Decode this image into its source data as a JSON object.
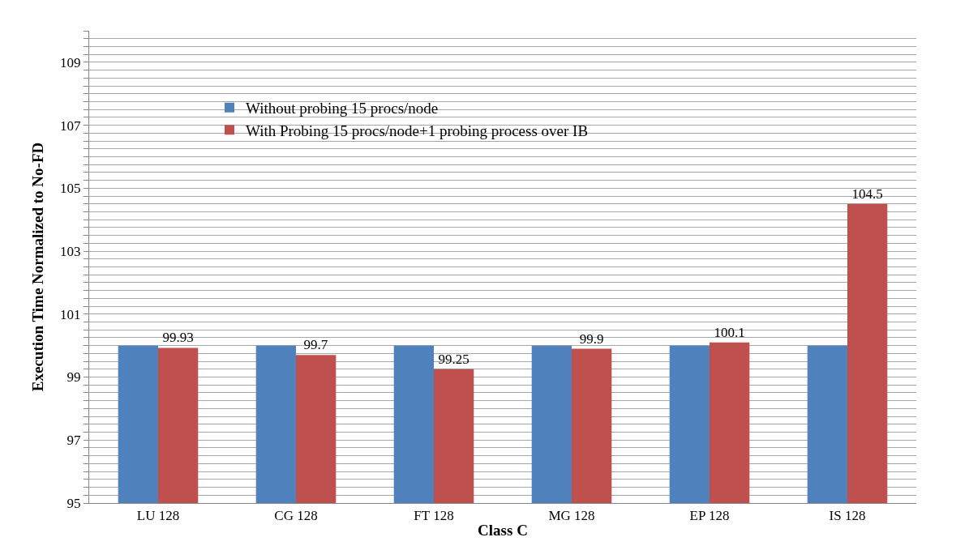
{
  "chart_data": {
    "type": "bar",
    "xlabel": "Class C",
    "ylabel": "Execution Time Normalized to No-FD",
    "categories": [
      "LU 128",
      "CG 128",
      "FT 128",
      "MG 128",
      "EP 128",
      "IS 128"
    ],
    "series": [
      {
        "name": "Without probing 15 procs/node",
        "color": "#4f81bd",
        "values": [
          100,
          100,
          100,
          100,
          100,
          100
        ]
      },
      {
        "name": "With Probing 15 procs/node+1 probing process over IB",
        "color": "#c0504d",
        "values": [
          99.93,
          99.7,
          99.25,
          99.9,
          100.1,
          104.5
        ],
        "value_labels": [
          "99.93",
          "99.7",
          "99.25",
          "99.9",
          "100.1",
          "104.5"
        ]
      }
    ],
    "ylim": [
      95,
      110
    ],
    "yticks": [
      95,
      {
        "value": 95.25,
        "label": null
      },
      {
        "value": 95.5,
        "label": null
      },
      {
        "value": 95.75,
        "label": null
      },
      {
        "value": 96,
        "label": null
      },
      {
        "value": 96.25,
        "label": null
      },
      {
        "value": 96.5,
        "label": null
      },
      {
        "value": 96.75,
        "label": null
      },
      97,
      {
        "value": 97.25,
        "label": null
      },
      {
        "value": 97.5,
        "label": null
      },
      {
        "value": 97.75,
        "label": null
      },
      {
        "value": 98,
        "label": null
      },
      {
        "value": 98.25,
        "label": null
      },
      {
        "value": 98.5,
        "label": null
      },
      {
        "value": 98.75,
        "label": null
      },
      99,
      {
        "value": 99.25,
        "label": null
      },
      {
        "value": 99.5,
        "label": null
      },
      {
        "value": 99.75,
        "label": null
      },
      {
        "value": 100,
        "label": null
      },
      {
        "value": 100.25,
        "label": null
      },
      {
        "value": 100.5,
        "label": null
      },
      {
        "value": 100.75,
        "label": null
      },
      101,
      {
        "value": 101.25,
        "label": null
      },
      {
        "value": 101.5,
        "label": null
      },
      {
        "value": 101.75,
        "label": null
      },
      {
        "value": 102,
        "label": null
      },
      {
        "value": 102.25,
        "label": null
      },
      {
        "value": 102.5,
        "label": null
      },
      {
        "value": 102.75,
        "label": null
      },
      103,
      {
        "value": 103.25,
        "label": null
      },
      {
        "value": 103.5,
        "label": null
      },
      {
        "value": 103.75,
        "label": null
      },
      {
        "value": 104,
        "label": null
      },
      {
        "value": 104.25,
        "label": null
      },
      {
        "value": 104.5,
        "label": null
      },
      {
        "value": 104.75,
        "label": null
      },
      105,
      {
        "value": 105.25,
        "label": null
      },
      {
        "value": 105.5,
        "label": null
      },
      {
        "value": 105.75,
        "label": null
      },
      {
        "value": 106,
        "label": null
      },
      {
        "value": 106.25,
        "label": null
      },
      {
        "value": 106.5,
        "label": null
      },
      {
        "value": 106.75,
        "label": null
      },
      107,
      {
        "value": 107.25,
        "label": null
      },
      {
        "value": 107.5,
        "label": null
      },
      {
        "value": 107.75,
        "label": null
      },
      {
        "value": 108,
        "label": null
      },
      {
        "value": 108.25,
        "label": null
      },
      {
        "value": 108.5,
        "label": null
      },
      {
        "value": 108.75,
        "label": null
      },
      109,
      {
        "value": 109.25,
        "label": null
      },
      {
        "value": 109.5,
        "label": null
      },
      {
        "value": 109.75,
        "label": null
      },
      {
        "value": 110,
        "label": null
      }
    ],
    "grid": "y",
    "legend": "top left"
  }
}
